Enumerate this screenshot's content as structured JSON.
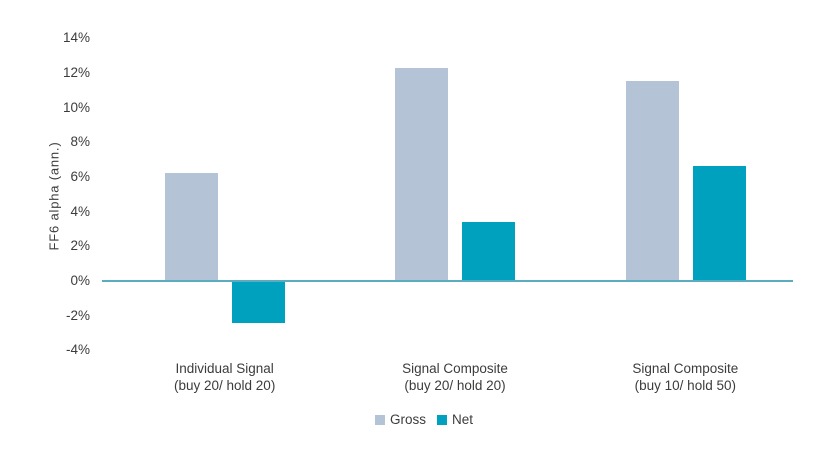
{
  "chart_data": {
    "type": "bar",
    "title": "",
    "ylabel": "FF6 alpha (ann.)",
    "xlabel": "",
    "categories": [
      "Individual Signal\n(buy 20/ hold 20)",
      "Signal Composite\n(buy 20/ hold 20)",
      "Signal Composite\n(buy 10/ hold 50)"
    ],
    "series": [
      {
        "name": "Gross",
        "values": [
          6.2,
          12.3,
          11.5
        ],
        "color": "#B5C3D6"
      },
      {
        "name": "Net",
        "values": [
          -2.4,
          3.4,
          6.6
        ],
        "color": "#00A1BE"
      }
    ],
    "ylim": [
      -4,
      14
    ],
    "ytick_step": 2,
    "ytick_suffix": "%",
    "grid": false,
    "legend_position": "bottom-center",
    "zero_line_color": "#5BACBE",
    "text_color": "#3C3C3B"
  }
}
